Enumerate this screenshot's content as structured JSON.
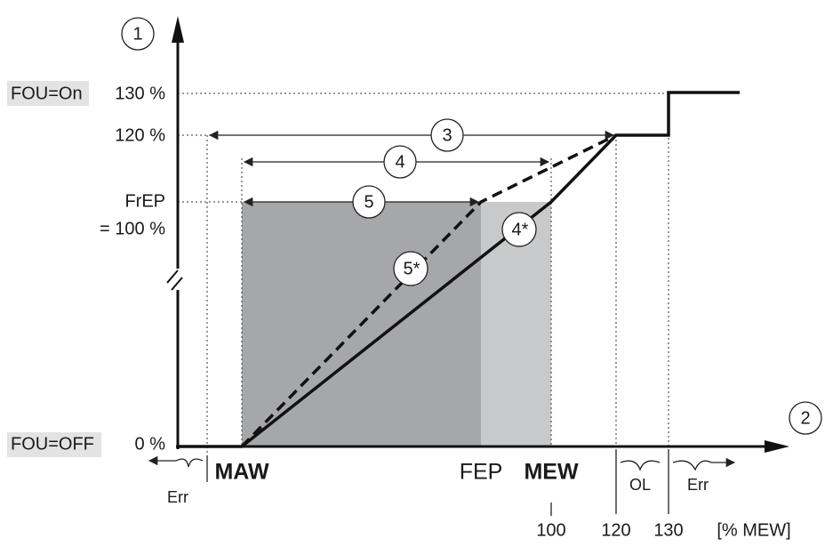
{
  "axes": {
    "y_marker": "1",
    "x_marker": "2"
  },
  "y_labels": {
    "fou_on": "FOU=On",
    "p130": "130 %",
    "p120": "120 %",
    "frep": "FrEP",
    "p100": "= 100 %",
    "fou_off": "FOU=OFF",
    "p0": "0 %"
  },
  "markers": {
    "m3": "3",
    "m4": "4",
    "m5": "5",
    "m4s": "4*",
    "m5s": "5*"
  },
  "x_labels": {
    "maw": "MAW",
    "fep": "FEP",
    "mew": "MEW",
    "err_left": "Err",
    "ol": "OL",
    "err_right": "Err",
    "v100": "100",
    "v120": "120",
    "v130": "130",
    "unit": "[% MEW]"
  }
}
